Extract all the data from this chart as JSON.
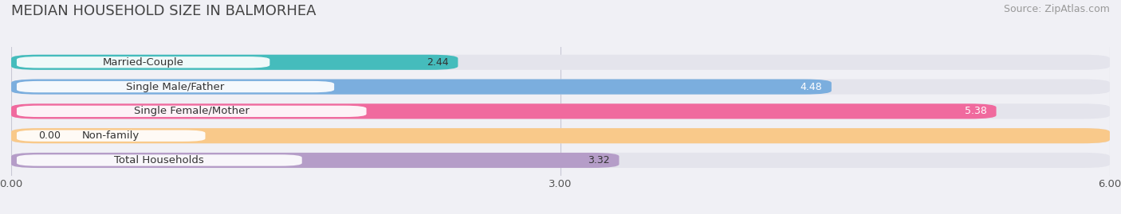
{
  "title": "MEDIAN HOUSEHOLD SIZE IN BALMORHEA",
  "source": "Source: ZipAtlas.com",
  "categories": [
    "Married-Couple",
    "Single Male/Father",
    "Single Female/Mother",
    "Non-family",
    "Total Households"
  ],
  "values": [
    2.44,
    4.48,
    5.38,
    0.0,
    3.32
  ],
  "bar_colors": [
    "#45BCBC",
    "#7BAEDE",
    "#F06A9E",
    "#F9C98A",
    "#B59DC8"
  ],
  "label_colors": [
    "#333333",
    "#333333",
    "#333333",
    "#333333",
    "#333333"
  ],
  "value_label_colors": [
    "#333333",
    "#ffffff",
    "#ffffff",
    "#333333",
    "#333333"
  ],
  "xlim": [
    0,
    6.0
  ],
  "xticks": [
    0.0,
    3.0,
    6.0
  ],
  "xtick_labels": [
    "0.00",
    "3.00",
    "6.00"
  ],
  "bar_height": 0.62,
  "background_color": "#f0f0f5",
  "bar_bg_color": "#e4e4ec",
  "title_fontsize": 13,
  "source_fontsize": 9,
  "label_fontsize": 9.5,
  "value_fontsize": 9
}
